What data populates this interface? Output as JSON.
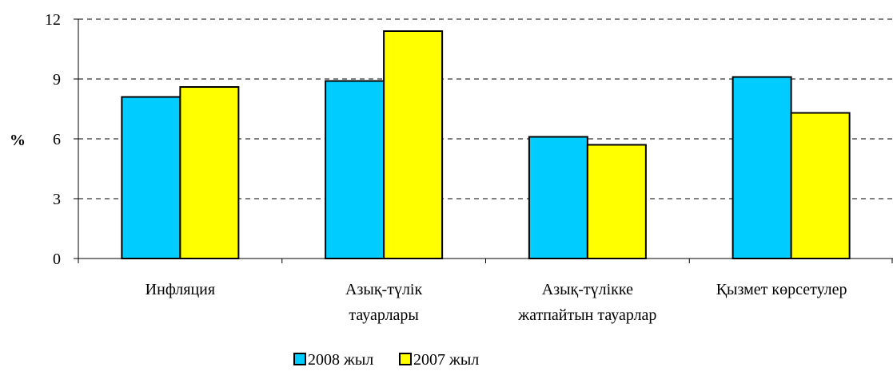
{
  "chart_data": {
    "type": "bar",
    "ylabel": "%",
    "ylim": [
      0,
      12
    ],
    "yticks": [
      0,
      3,
      6,
      9,
      12
    ],
    "grid": true,
    "legend_position": "bottom",
    "categories": [
      [
        "Инфляция"
      ],
      [
        "Азық-түлік",
        "тауарлары"
      ],
      [
        "Азық-түлікке",
        "жатпайтын тауарлар"
      ],
      [
        "Қызмет көрсетулер"
      ]
    ],
    "series": [
      {
        "name": "2008 жыл",
        "color": "#00ccff",
        "values": [
          8.1,
          8.9,
          6.1,
          9.1
        ]
      },
      {
        "name": "2007 жыл",
        "color": "#ffff00",
        "values": [
          8.6,
          11.4,
          5.7,
          7.3
        ]
      }
    ]
  }
}
